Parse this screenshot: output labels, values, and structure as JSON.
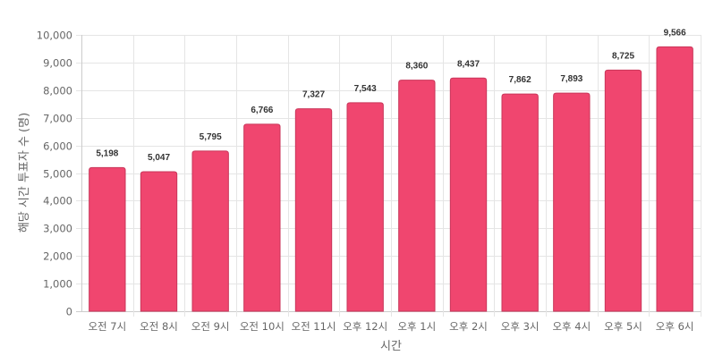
{
  "chart_data": {
    "type": "bar",
    "categories": [
      "오전 7시",
      "오전 8시",
      "오전 9시",
      "오전 10시",
      "오전 11시",
      "오후 12시",
      "오후 1시",
      "오후 2시",
      "오후 3시",
      "오후 4시",
      "오후 5시",
      "오후 6시"
    ],
    "values": [
      5198,
      5047,
      5795,
      6766,
      7327,
      7543,
      8360,
      8437,
      7862,
      7893,
      8725,
      9566
    ],
    "value_labels": [
      "5,198",
      "5,047",
      "5,795",
      "6,766",
      "7,327",
      "7,543",
      "8,360",
      "8,437",
      "7,862",
      "7,893",
      "8,725",
      "9,566"
    ],
    "xlabel": "시간",
    "ylabel": "해당 시간 투표자 수 (명)",
    "ylim": [
      0,
      10000
    ],
    "y_ticks": [
      0,
      1000,
      2000,
      3000,
      4000,
      5000,
      6000,
      7000,
      8000,
      9000,
      10000
    ],
    "y_tick_labels": [
      "0",
      "1,000",
      "2,000",
      "3,000",
      "4,000",
      "5,000",
      "6,000",
      "7,000",
      "8,000",
      "9,000",
      "10,000"
    ],
    "grid": true,
    "legend": "none",
    "bar_color": "#f0466f",
    "bar_border_color": "#c9365a"
  }
}
